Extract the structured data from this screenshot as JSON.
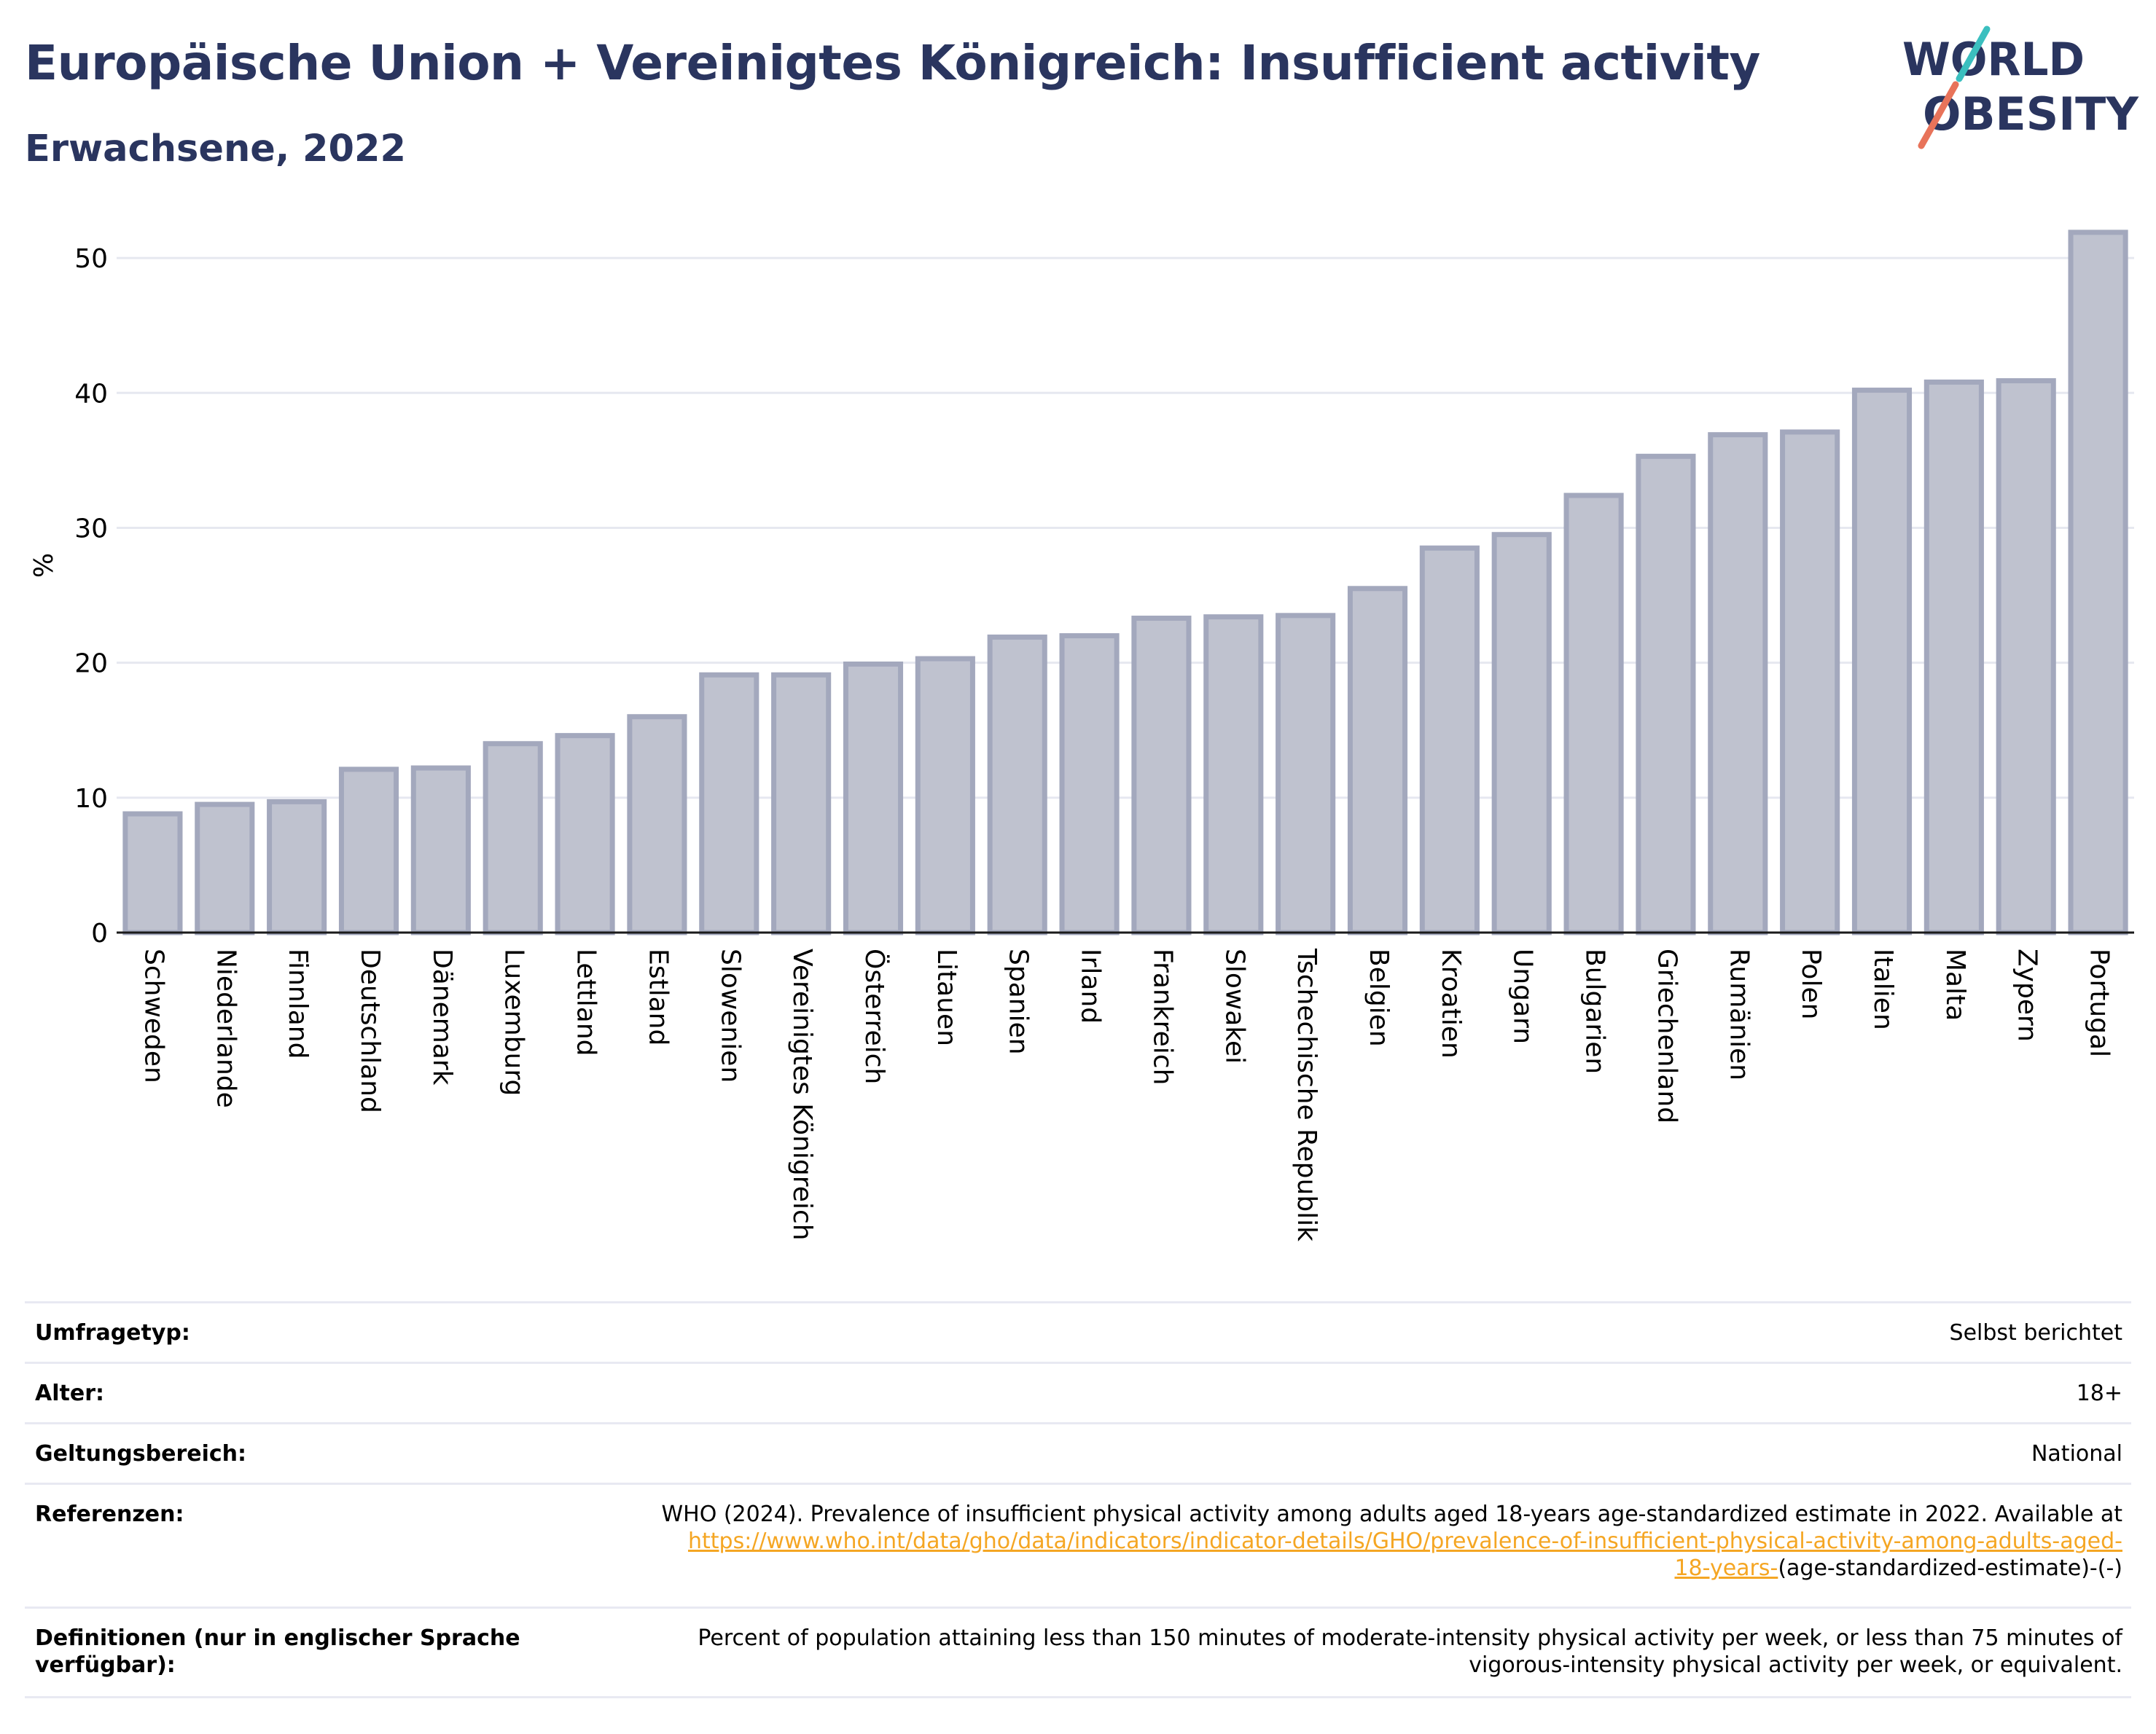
{
  "title": "Europäische Union + Vereinigtes Königreich: Insufficient activity",
  "subtitle": "Erwachsene, 2022",
  "logo": {
    "line1": "WORLD",
    "line2": "OBESITY",
    "bar_colors": [
      "#e8735a",
      "#3bbfbf"
    ]
  },
  "colors": {
    "bar_fill": "#bfc2cf",
    "bar_stroke": "#a3a8bd",
    "title": "#2a355f",
    "gridline": "#e6e8f0",
    "link": "#f5a623"
  },
  "chart_data": {
    "type": "bar",
    "categories": [
      "Schweden",
      "Niederlande",
      "Finnland",
      "Deutschland",
      "Dänemark",
      "Luxemburg",
      "Lettland",
      "Estland",
      "Slowenien",
      "Vereinigtes Königreich",
      "Österreich",
      "Litauen",
      "Spanien",
      "Irland",
      "Frankreich",
      "Slowakei",
      "Tschechische Republik",
      "Belgien",
      "Kroatien",
      "Ungarn",
      "Bulgarien",
      "Griechenland",
      "Rumänien",
      "Polen",
      "Italien",
      "Malta",
      "Zypern",
      "Portugal"
    ],
    "values": [
      8.8,
      9.5,
      9.7,
      12.1,
      12.2,
      14.0,
      14.6,
      16.0,
      19.1,
      19.1,
      19.9,
      20.3,
      21.9,
      22.0,
      23.3,
      23.4,
      23.5,
      25.5,
      28.5,
      29.5,
      32.4,
      35.3,
      36.9,
      37.1,
      40.2,
      40.8,
      40.9,
      51.9
    ],
    "ylabel": "%",
    "xlabel": "",
    "ylim": [
      0,
      54
    ],
    "yticks": [
      0,
      10,
      20,
      30,
      40,
      50
    ],
    "grid": true
  },
  "table": {
    "rows": [
      {
        "label": "Umfragetyp:",
        "value": "Selbst berichtet"
      },
      {
        "label": "Alter:",
        "value": "18+"
      },
      {
        "label": "Geltungsbereich:",
        "value": "National"
      }
    ],
    "references": {
      "label": "Referenzen:",
      "text1": "WHO (2024). Prevalence of insufficient physical activity among adults aged 18-years age-standardized estimate in 2022. Available at",
      "link1": "https://www.who.int/data/gho/data/indicators/indicator-details/GHO/prevalence-of-insufficient-physical-activity-among-adults-aged-",
      "link2": "18-years-",
      "text2": "(age-standardized-estimate)-(-)"
    },
    "definitions": {
      "label1": "Definitionen (nur in englischer Sprache",
      "label2": "verfügbar):",
      "line1": "Percent of population attaining less than 150 minutes of moderate-intensity physical activity per week, or less than 75 minutes of",
      "line2": "vigorous-intensity physical activity per week, or equivalent."
    }
  }
}
